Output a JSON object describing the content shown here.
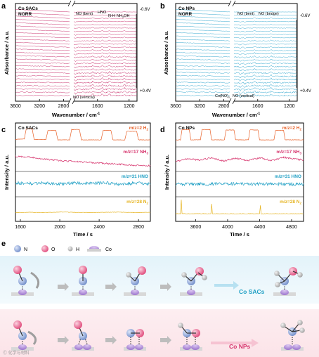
{
  "panels": {
    "a": {
      "letter": "a",
      "label1": "Co SACs",
      "label2": "NORR",
      "ann_no_bent": "NO (bent)",
      "ann_hno": "HNO",
      "ann_nh": "N-H",
      "ann_nh2oh": "NH",
      "ann_nh2oh_sub": "2",
      "ann_nh2oh_tail": "OH",
      "ann_no_vert": "NO (vertical)",
      "v_top": "-0.6V",
      "v_bot": "+0.4V",
      "ylabel": "Absorbance / a.u.",
      "xlabel": "Wavenumber / cm",
      "xlabel_sup": "-1"
    },
    "b": {
      "letter": "b",
      "label1": "Co NPs",
      "label2": "NORR",
      "ann_no_bent": "NO (bent)",
      "ann_no_bridge": "NO (bridge)",
      "ann_conox": "Co(NO)",
      "ann_conox_sub": "x",
      "ann_no_vert": "NO (vertical)",
      "v_top": "-0.6V",
      "v_bot": "+0.4V",
      "ylabel": "Absorbance / a.u.",
      "xlabel": "Wavenumber / cm",
      "xlabel_sup": "-1"
    },
    "c": {
      "letter": "c",
      "label": "Co SACs",
      "ylabel": "Intensity / a.u.",
      "xlabel": "Time / s"
    },
    "d": {
      "letter": "d",
      "label": "Co NPs",
      "ylabel": "Intensity / a.u.",
      "xlabel": "Time / s"
    },
    "e": {
      "letter": "e",
      "legend_n": "N",
      "legend_o": "O",
      "legend_h": "H",
      "legend_co": "Co",
      "row1_label": "Co SACs",
      "row2_label": "Co NPs",
      "watermark": "Ⓒ 化学与材料"
    }
  },
  "colors": {
    "pink": "#c2185b",
    "cyan": "#1a9cc8",
    "orange": "#e8622a",
    "magenta": "#d6336c",
    "teal": "#1f9fc4",
    "gold": "#e6b422",
    "n_atom": "#8ea6d6",
    "o_atom": "#e8648c",
    "h_atom": "#bdbdbd",
    "co_atom": "#b493d8"
  },
  "chart_data": [
    {
      "type": "line",
      "panel": "a",
      "xlabel": "Wavenumber / cm-1",
      "ylabel": "Absorbance / a.u.",
      "xlim": [
        3600,
        1100
      ],
      "x_reversed": true,
      "xticks": [
        3600,
        3200,
        2800,
        1600,
        1200
      ],
      "axis_break": [
        2700,
        1900
      ],
      "series_count": 27,
      "potential_range": [
        "-0.6V",
        "+0.4V"
      ],
      "peaks": [
        {
          "x": 1660,
          "label": "NO (bent)"
        },
        {
          "x": 1540,
          "label": "HNO"
        },
        {
          "x": 1450,
          "label": "N-H"
        },
        {
          "x": 1260,
          "label": "NH2OH"
        },
        {
          "x": 1880,
          "label": "NO (vertical)"
        }
      ],
      "color": "#c2185b"
    },
    {
      "type": "line",
      "panel": "b",
      "xlabel": "Wavenumber / cm-1",
      "ylabel": "Absorbance / a.u.",
      "xlim": [
        3600,
        1100
      ],
      "x_reversed": true,
      "xticks": [
        3600,
        3200,
        2800,
        1600,
        1200
      ],
      "axis_break": [
        2700,
        1900
      ],
      "series_count": 27,
      "potential_range": [
        "-0.6V",
        "+0.4V"
      ],
      "peaks": [
        {
          "x": 1640,
          "label": "NO (bent)"
        },
        {
          "x": 1430,
          "label": "NO (bridge)"
        },
        {
          "x": 1820,
          "label": "Co(NO)x"
        },
        {
          "x": 1760,
          "label": "NO (vertical)"
        }
      ],
      "color": "#1a9cc8"
    },
    {
      "type": "line",
      "panel": "c",
      "xlabel": "Time / s",
      "ylabel": "Intensity / a.u.",
      "xlim": [
        1550,
        2920
      ],
      "xticks": [
        1600,
        2000,
        2400,
        2800
      ],
      "series": [
        {
          "name": "m/z=2 H2",
          "label_main": "m/z=2 H",
          "label_sub": "2",
          "color": "#e8622a",
          "x": [
            1550,
            1640,
            1660,
            1720,
            1740,
            1860,
            1880,
            1960,
            1980,
            2100,
            2120,
            2200,
            2220,
            2420,
            2440,
            2520,
            2540,
            2660,
            2680,
            2780,
            2800,
            2920
          ],
          "y": [
            0.3,
            0.32,
            0.78,
            0.78,
            0.3,
            0.3,
            0.7,
            0.7,
            0.28,
            0.28,
            0.74,
            0.74,
            0.28,
            0.28,
            0.7,
            0.7,
            0.28,
            0.28,
            0.66,
            0.66,
            0.28,
            0.28
          ]
        },
        {
          "name": "m/z=17 NH3",
          "label_main": "m/z=17 NH",
          "label_sub": "3",
          "color": "#d6336c",
          "x": [
            1550,
            1700,
            1850,
            2000,
            2150,
            2300,
            2450,
            2600,
            2750,
            2920
          ],
          "y": [
            0.62,
            0.58,
            0.5,
            0.44,
            0.4,
            0.36,
            0.32,
            0.28,
            0.24,
            0.22
          ]
        },
        {
          "name": "m/z=31 HNO",
          "label_main": "m/z=31 HNO",
          "label_sub": "",
          "color": "#1f9fc4",
          "x": [
            1550,
            1700,
            1850,
            2000,
            2150,
            2300,
            2450,
            2600,
            2750,
            2920
          ],
          "y": [
            0.55,
            0.52,
            0.55,
            0.5,
            0.54,
            0.52,
            0.56,
            0.5,
            0.54,
            0.52
          ]
        },
        {
          "name": "m/z=28 N2",
          "label_main": "m/z=28 N",
          "label_sub": "2",
          "color": "#e6b422",
          "x": [
            1550,
            1700,
            1850,
            2000,
            2150,
            2300,
            2450,
            2600,
            2750,
            2920
          ],
          "y": [
            0.35,
            0.36,
            0.35,
            0.37,
            0.36,
            0.35,
            0.36,
            0.37,
            0.35,
            0.36
          ]
        }
      ]
    },
    {
      "type": "line",
      "panel": "d",
      "xlabel": "Time / s",
      "ylabel": "Intensity / a.u.",
      "xlim": [
        3350,
        4950
      ],
      "xticks": [
        3600,
        4000,
        4400,
        4800
      ],
      "series": [
        {
          "name": "m/z=2 H2",
          "label_main": "m/z=2 H",
          "label_sub": "2",
          "color": "#e8622a",
          "x": [
            3350,
            3410,
            3430,
            3520,
            3540,
            3660,
            3680,
            3780,
            3800,
            3960,
            3980,
            4080,
            4100,
            4260,
            4280,
            4380,
            4400,
            4580,
            4600,
            4700,
            4720,
            4950
          ],
          "y": [
            0.28,
            0.28,
            0.74,
            0.74,
            0.28,
            0.28,
            0.74,
            0.74,
            0.28,
            0.28,
            0.72,
            0.72,
            0.28,
            0.28,
            0.72,
            0.72,
            0.28,
            0.28,
            0.7,
            0.7,
            0.28,
            0.28
          ]
        },
        {
          "name": "m/z=17 NH3",
          "label_main": "m/z=17 NH",
          "label_sub": "3",
          "color": "#d6336c",
          "x": [
            3350,
            3500,
            3650,
            3800,
            3950,
            4100,
            4250,
            4400,
            4550,
            4700,
            4950
          ],
          "y": [
            0.4,
            0.52,
            0.46,
            0.56,
            0.42,
            0.54,
            0.44,
            0.56,
            0.44,
            0.58,
            0.46
          ]
        },
        {
          "name": "m/z=31 HNO",
          "label_main": "m/z=31 HNO",
          "label_sub": "",
          "color": "#1f9fc4",
          "x": [
            3350,
            3650,
            3950,
            4250,
            4550,
            4950
          ],
          "y": [
            0.5,
            0.5,
            0.51,
            0.5,
            0.5,
            0.5
          ]
        },
        {
          "name": "m/z=28 N2",
          "label_main": "m/z=28 N",
          "label_sub": "2",
          "color": "#e6b422",
          "x": [
            3350,
            3410,
            3420,
            3430,
            3700,
            3790,
            3800,
            3810,
            4100,
            4400,
            4410,
            4420,
            4700,
            4950
          ],
          "y": [
            0.3,
            0.3,
            0.9,
            0.3,
            0.3,
            0.3,
            0.72,
            0.3,
            0.3,
            0.3,
            0.66,
            0.3,
            0.3,
            0.3
          ]
        }
      ]
    }
  ]
}
